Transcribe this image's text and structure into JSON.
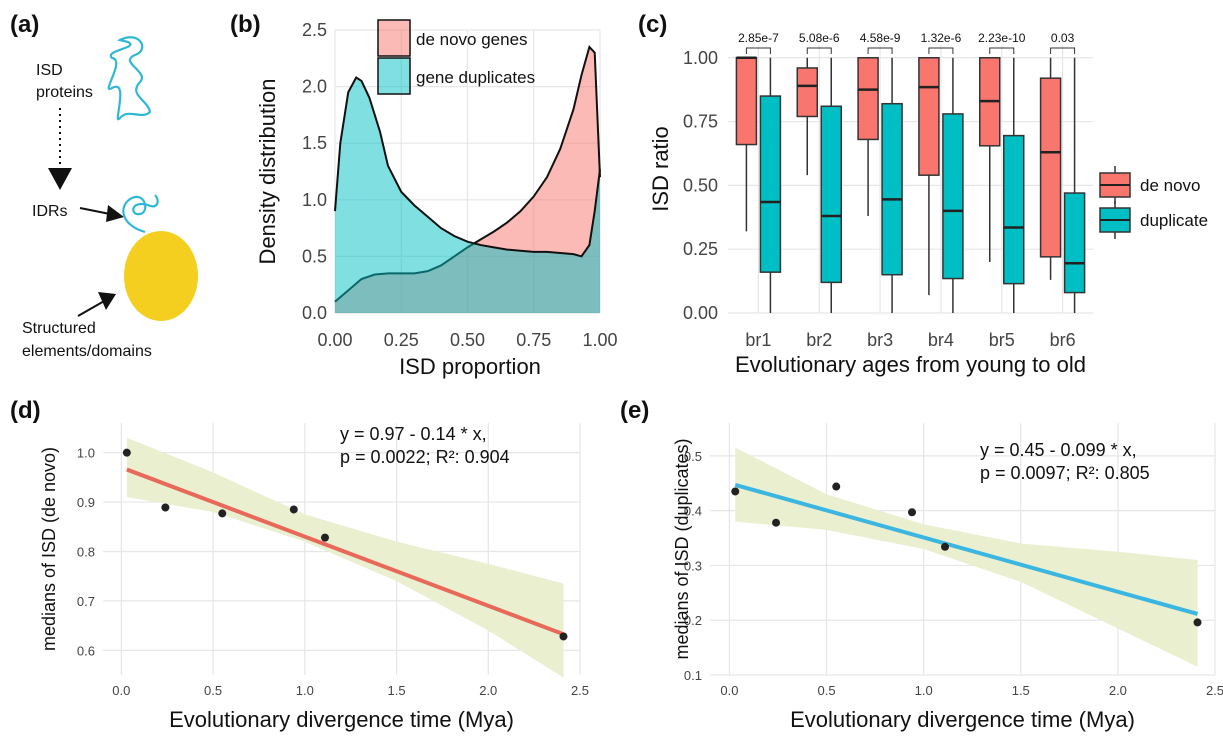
{
  "panels": {
    "a": {
      "label": "(a)",
      "isd_proteins": [
        "ISD",
        "proteins"
      ],
      "idrs": "IDRs",
      "structured": [
        "Structured",
        "elements/domains"
      ],
      "colors": {
        "chain": "#2fb8d6",
        "domain": "#f5cf1f"
      }
    },
    "b": {
      "label": "(b)"
    },
    "c": {
      "label": "(c)"
    },
    "d": {
      "label": "(d)"
    },
    "e": {
      "label": "(e)"
    }
  },
  "chart_data": [
    {
      "id": "b",
      "type": "area",
      "xlabel": "ISD proportion",
      "ylabel": "Density distribution",
      "xlim": [
        0,
        1
      ],
      "ylim": [
        0,
        2.5
      ],
      "xticks": [
        "0.00",
        "0.25",
        "0.50",
        "0.75",
        "1.00"
      ],
      "yticks": [
        "0.0",
        "0.5",
        "1.0",
        "1.5",
        "2.0",
        "2.5"
      ],
      "legend": {
        "position": "top-center",
        "entries": [
          "de novo genes",
          "gene duplicates"
        ]
      },
      "series": [
        {
          "name": "de novo genes",
          "color": "#f8766d",
          "x": [
            0,
            0.05,
            0.1,
            0.15,
            0.2,
            0.25,
            0.3,
            0.35,
            0.4,
            0.45,
            0.5,
            0.55,
            0.6,
            0.65,
            0.7,
            0.75,
            0.8,
            0.85,
            0.9,
            0.93,
            0.96,
            0.98,
            1.0
          ],
          "y": [
            0.1,
            0.2,
            0.3,
            0.34,
            0.35,
            0.35,
            0.35,
            0.37,
            0.42,
            0.5,
            0.58,
            0.65,
            0.72,
            0.8,
            0.9,
            1.03,
            1.2,
            1.45,
            1.8,
            2.1,
            2.35,
            2.3,
            1.2
          ]
        },
        {
          "name": "gene duplicates",
          "color": "#00bfc4",
          "x": [
            0,
            0.02,
            0.05,
            0.08,
            0.1,
            0.13,
            0.17,
            0.2,
            0.25,
            0.3,
            0.35,
            0.4,
            0.45,
            0.5,
            0.55,
            0.6,
            0.65,
            0.7,
            0.75,
            0.8,
            0.85,
            0.9,
            0.93,
            0.96,
            0.98,
            1.0
          ],
          "y": [
            0.9,
            1.5,
            1.95,
            2.08,
            2.05,
            1.9,
            1.6,
            1.3,
            1.07,
            0.95,
            0.85,
            0.75,
            0.68,
            0.63,
            0.6,
            0.58,
            0.56,
            0.55,
            0.54,
            0.54,
            0.53,
            0.52,
            0.5,
            0.6,
            0.9,
            1.27
          ]
        }
      ],
      "grid": true
    },
    {
      "id": "c",
      "type": "box",
      "xlabel": "Evolutionary ages from young to old",
      "ylabel": "ISD ratio",
      "ylim": [
        0,
        1.05
      ],
      "yticks": [
        "0.00",
        "0.25",
        "0.50",
        "0.75",
        "1.00"
      ],
      "categories": [
        "br1",
        "br2",
        "br3",
        "br4",
        "br5",
        "br6"
      ],
      "pvalues": [
        "2.85e-7",
        "5.08e-6",
        "4.58e-9",
        "1.32e-6",
        "2.23e-10",
        "0.03"
      ],
      "legend": {
        "position": "right",
        "entries": [
          "de novo",
          "duplicate"
        ]
      },
      "series": [
        {
          "name": "de novo",
          "color": "#f8766d",
          "boxes": [
            {
              "min": 0.32,
              "q1": 0.66,
              "median": 1.0,
              "q3": 1.0,
              "max": 1.0
            },
            {
              "min": 0.54,
              "q1": 0.77,
              "median": 0.89,
              "q3": 0.96,
              "max": 1.0
            },
            {
              "min": 0.38,
              "q1": 0.68,
              "median": 0.875,
              "q3": 1.0,
              "max": 1.0
            },
            {
              "min": 0.07,
              "q1": 0.54,
              "median": 0.885,
              "q3": 1.0,
              "max": 1.0
            },
            {
              "min": 0.2,
              "q1": 0.655,
              "median": 0.83,
              "q3": 1.0,
              "max": 1.0
            },
            {
              "min": 0.13,
              "q1": 0.22,
              "median": 0.63,
              "q3": 0.92,
              "max": 1.0
            }
          ]
        },
        {
          "name": "duplicate",
          "color": "#00bfc4",
          "boxes": [
            {
              "min": 0.0,
              "q1": 0.16,
              "median": 0.435,
              "q3": 0.85,
              "max": 1.0
            },
            {
              "min": 0.0,
              "q1": 0.12,
              "median": 0.38,
              "q3": 0.81,
              "max": 1.0
            },
            {
              "min": 0.0,
              "q1": 0.15,
              "median": 0.445,
              "q3": 0.82,
              "max": 1.0
            },
            {
              "min": 0.0,
              "q1": 0.135,
              "median": 0.4,
              "q3": 0.78,
              "max": 1.0
            },
            {
              "min": 0.0,
              "q1": 0.115,
              "median": 0.335,
              "q3": 0.695,
              "max": 1.0
            },
            {
              "min": 0.0,
              "q1": 0.08,
              "median": 0.195,
              "q3": 0.47,
              "max": 1.0
            }
          ]
        }
      ],
      "grid": true
    },
    {
      "id": "d",
      "type": "scatter",
      "xlabel": "Evolutionary divergence time (Mya)",
      "ylabel": "medians of ISD (de novo)",
      "xlim": [
        -0.1,
        2.5
      ],
      "ylim": [
        0.55,
        1.06
      ],
      "xticks": [
        "0.0",
        "0.5",
        "1.0",
        "1.5",
        "2.0",
        "2.5"
      ],
      "yticks": [
        "0.6",
        "0.7",
        "0.8",
        "0.9",
        "1.0"
      ],
      "points": {
        "x": [
          0.03,
          0.24,
          0.55,
          0.94,
          1.11,
          2.41
        ],
        "y": [
          1.0,
          0.889,
          0.877,
          0.885,
          0.828,
          0.628
        ]
      },
      "fit": {
        "intercept": 0.97,
        "slope": -0.14,
        "color": "#e8685a",
        "band": {
          "x": [
            0.03,
            0.5,
            1.0,
            1.5,
            2.0,
            2.41
          ],
          "lower": [
            0.91,
            0.88,
            0.82,
            0.74,
            0.64,
            0.545
          ],
          "upper": [
            1.03,
            0.96,
            0.875,
            0.82,
            0.775,
            0.735
          ]
        }
      },
      "band_color": "#e9efcf",
      "annotation": {
        "line1": "y = 0.97 - 0.14 * x,",
        "line2": "p = 0.0022; R²: 0.904"
      },
      "grid": true
    },
    {
      "id": "e",
      "type": "scatter",
      "xlabel": "Evolutionary divergence time (Mya)",
      "ylabel": "medians of ISD (duplicates)",
      "xlim": [
        -0.1,
        2.5
      ],
      "ylim": [
        0.1,
        0.56
      ],
      "xticks": [
        "0.0",
        "0.5",
        "1.0",
        "1.5",
        "2.0",
        "2.5"
      ],
      "yticks": [
        "0.1",
        "0.2",
        "0.3",
        "0.4",
        "0.5"
      ],
      "points": {
        "x": [
          0.03,
          0.24,
          0.55,
          0.94,
          1.11,
          2.41
        ],
        "y": [
          0.435,
          0.378,
          0.444,
          0.397,
          0.334,
          0.196
        ]
      },
      "fit": {
        "intercept": 0.45,
        "slope": -0.099,
        "color": "#3bb6e0",
        "band": {
          "x": [
            0.03,
            0.5,
            1.0,
            1.5,
            2.0,
            2.41
          ],
          "lower": [
            0.38,
            0.365,
            0.33,
            0.27,
            0.185,
            0.115
          ],
          "upper": [
            0.515,
            0.43,
            0.375,
            0.34,
            0.325,
            0.31
          ]
        }
      },
      "band_color": "#e9efcf",
      "annotation": {
        "line1": "y = 0.45 - 0.099 * x,",
        "line2": "p = 0.0097; R²: 0.805"
      },
      "grid": true
    }
  ]
}
